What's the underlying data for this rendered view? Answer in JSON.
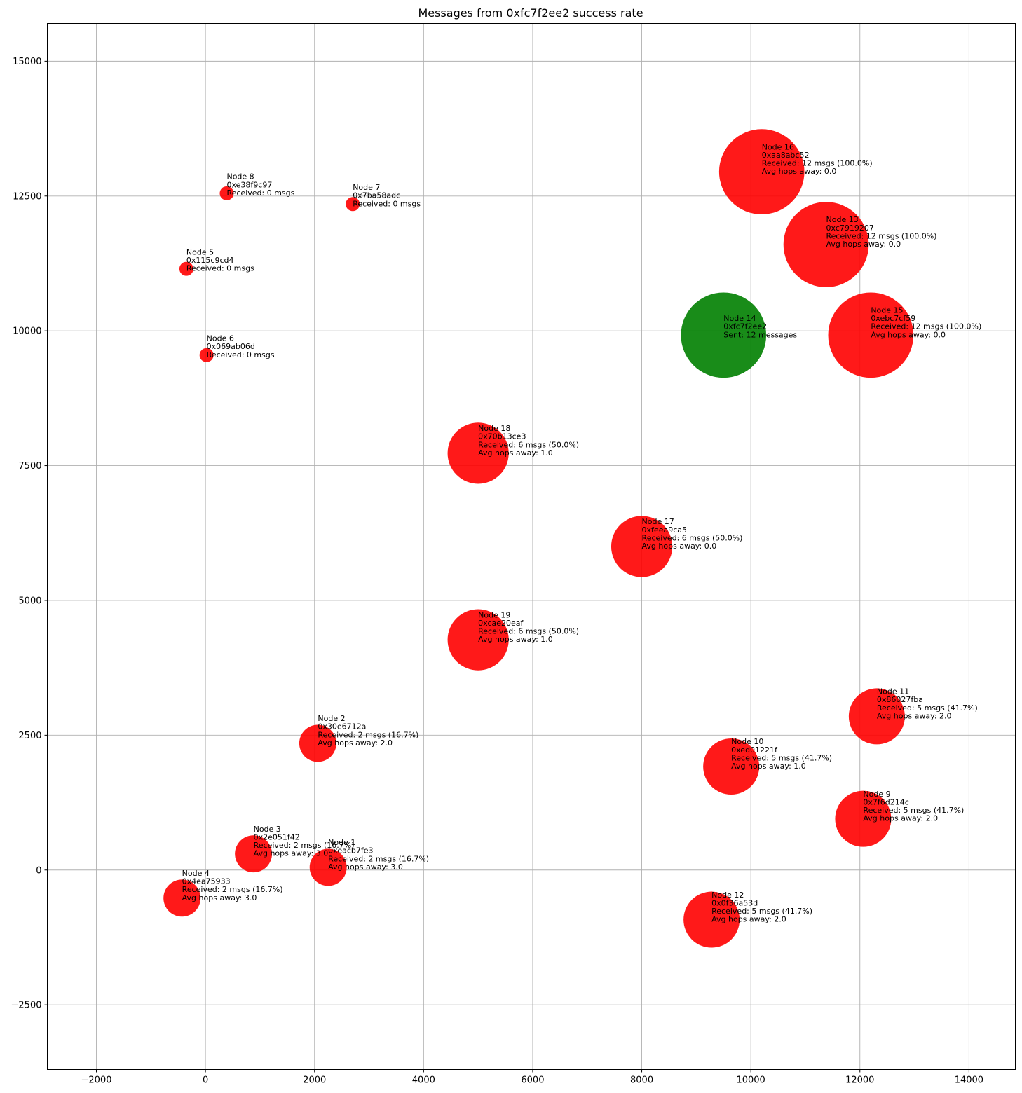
{
  "chart_data": {
    "type": "scatter",
    "title": "Messages from 0xfc7f2ee2 success rate",
    "xlabel": "",
    "ylabel": "",
    "xlim": [
      -2900,
      14850
    ],
    "ylim": [
      -3700,
      15700
    ],
    "xticks": [
      -2000,
      0,
      2000,
      4000,
      6000,
      8000,
      10000,
      12000,
      14000
    ],
    "xtick_labels": [
      "−2000",
      "0",
      "2000",
      "4000",
      "6000",
      "8000",
      "10000",
      "12000",
      "14000"
    ],
    "yticks": [
      -2500,
      0,
      2500,
      5000,
      7500,
      10000,
      12500,
      15000
    ],
    "ytick_labels": [
      "−2500",
      "0",
      "2500",
      "5000",
      "7500",
      "10000",
      "12500",
      "15000"
    ],
    "grid": true,
    "colors": {
      "receiver": "#ff0000",
      "sender": "#008000"
    },
    "points": [
      {
        "x": 2250,
        "y": 50,
        "received": 2,
        "color": "receiver",
        "label": [
          "Node 1",
          "0xeacb7fe3",
          "Received: 2 msgs (16.7%)",
          "Avg hops away: 3.0"
        ]
      },
      {
        "x": 2060,
        "y": 2350,
        "received": 2,
        "color": "receiver",
        "label": [
          "Node 2",
          "0x30e6712a",
          "Received: 2 msgs (16.7%)",
          "Avg hops away: 2.0"
        ]
      },
      {
        "x": 880,
        "y": 300,
        "received": 2,
        "color": "receiver",
        "label": [
          "Node 3",
          "0x2e051f42",
          "Received: 2 msgs (16.7%)",
          "Avg hops away: 3.0"
        ]
      },
      {
        "x": -430,
        "y": -520,
        "received": 2,
        "color": "receiver",
        "label": [
          "Node 4",
          "0x4ea75933",
          "Received: 2 msgs (16.7%)",
          "Avg hops away: 3.0"
        ]
      },
      {
        "x": -350,
        "y": 11150,
        "received": 0,
        "color": "receiver",
        "label": [
          "Node 5",
          "0x115c9cd4",
          "Received: 0 msgs"
        ]
      },
      {
        "x": 20,
        "y": 9550,
        "received": 0,
        "color": "receiver",
        "label": [
          "Node 6",
          "0x069ab06d",
          "Received: 0 msgs"
        ]
      },
      {
        "x": 2700,
        "y": 12350,
        "received": 0,
        "color": "receiver",
        "label": [
          "Node 7",
          "0x7ba58adc",
          "Received: 0 msgs"
        ]
      },
      {
        "x": 390,
        "y": 12550,
        "received": 0,
        "color": "receiver",
        "label": [
          "Node 8",
          "0xe38f9c97",
          "Received: 0 msgs"
        ]
      },
      {
        "x": 12060,
        "y": 950,
        "received": 5,
        "color": "receiver",
        "label": [
          "Node 9",
          "0x7f6d214c",
          "Received: 5 msgs (41.7%)",
          "Avg hops away: 2.0"
        ]
      },
      {
        "x": 9640,
        "y": 1920,
        "received": 5,
        "color": "receiver",
        "label": [
          "Node 10",
          "0xed01221f",
          "Received: 5 msgs (41.7%)",
          "Avg hops away: 1.0"
        ]
      },
      {
        "x": 12310,
        "y": 2850,
        "received": 5,
        "color": "receiver",
        "label": [
          "Node 11",
          "0x86027fba",
          "Received: 5 msgs (41.7%)",
          "Avg hops away: 2.0"
        ]
      },
      {
        "x": 9280,
        "y": -920,
        "received": 5,
        "color": "receiver",
        "label": [
          "Node 12",
          "0x0f36a53d",
          "Received: 5 msgs (41.7%)",
          "Avg hops away: 2.0"
        ]
      },
      {
        "x": 11380,
        "y": 11600,
        "received": 12,
        "color": "receiver",
        "label": [
          "Node 13",
          "0xc7919207",
          "Received: 12 msgs (100.0%)",
          "Avg hops away: 0.0"
        ]
      },
      {
        "x": 9500,
        "y": 9920,
        "received": 12,
        "color": "sender",
        "label": [
          "Node 14",
          "0xfc7f2ee2",
          "Sent: 12 messages"
        ]
      },
      {
        "x": 12200,
        "y": 9920,
        "received": 12,
        "color": "receiver",
        "label": [
          "Node 15",
          "0xebc7cf59",
          "Received: 12 msgs (100.0%)",
          "Avg hops away: 0.0"
        ]
      },
      {
        "x": 10200,
        "y": 12950,
        "received": 12,
        "color": "receiver",
        "label": [
          "Node 16",
          "0xaa8abc52",
          "Received: 12 msgs (100.0%)",
          "Avg hops away: 0.0"
        ]
      },
      {
        "x": 8000,
        "y": 6000,
        "received": 6,
        "color": "receiver",
        "label": [
          "Node 17",
          "0xfeea9ca5",
          "Received: 6 msgs (50.0%)",
          "Avg hops away: 0.0"
        ]
      },
      {
        "x": 5000,
        "y": 7730,
        "received": 6,
        "color": "receiver",
        "label": [
          "Node 18",
          "0x70b13ce3",
          "Received: 6 msgs (50.0%)",
          "Avg hops away: 1.0"
        ]
      },
      {
        "x": 5000,
        "y": 4270,
        "received": 6,
        "color": "receiver",
        "label": [
          "Node 19",
          "0xcae20eaf",
          "Received: 6 msgs (50.0%)",
          "Avg hops away: 1.0"
        ]
      }
    ]
  }
}
